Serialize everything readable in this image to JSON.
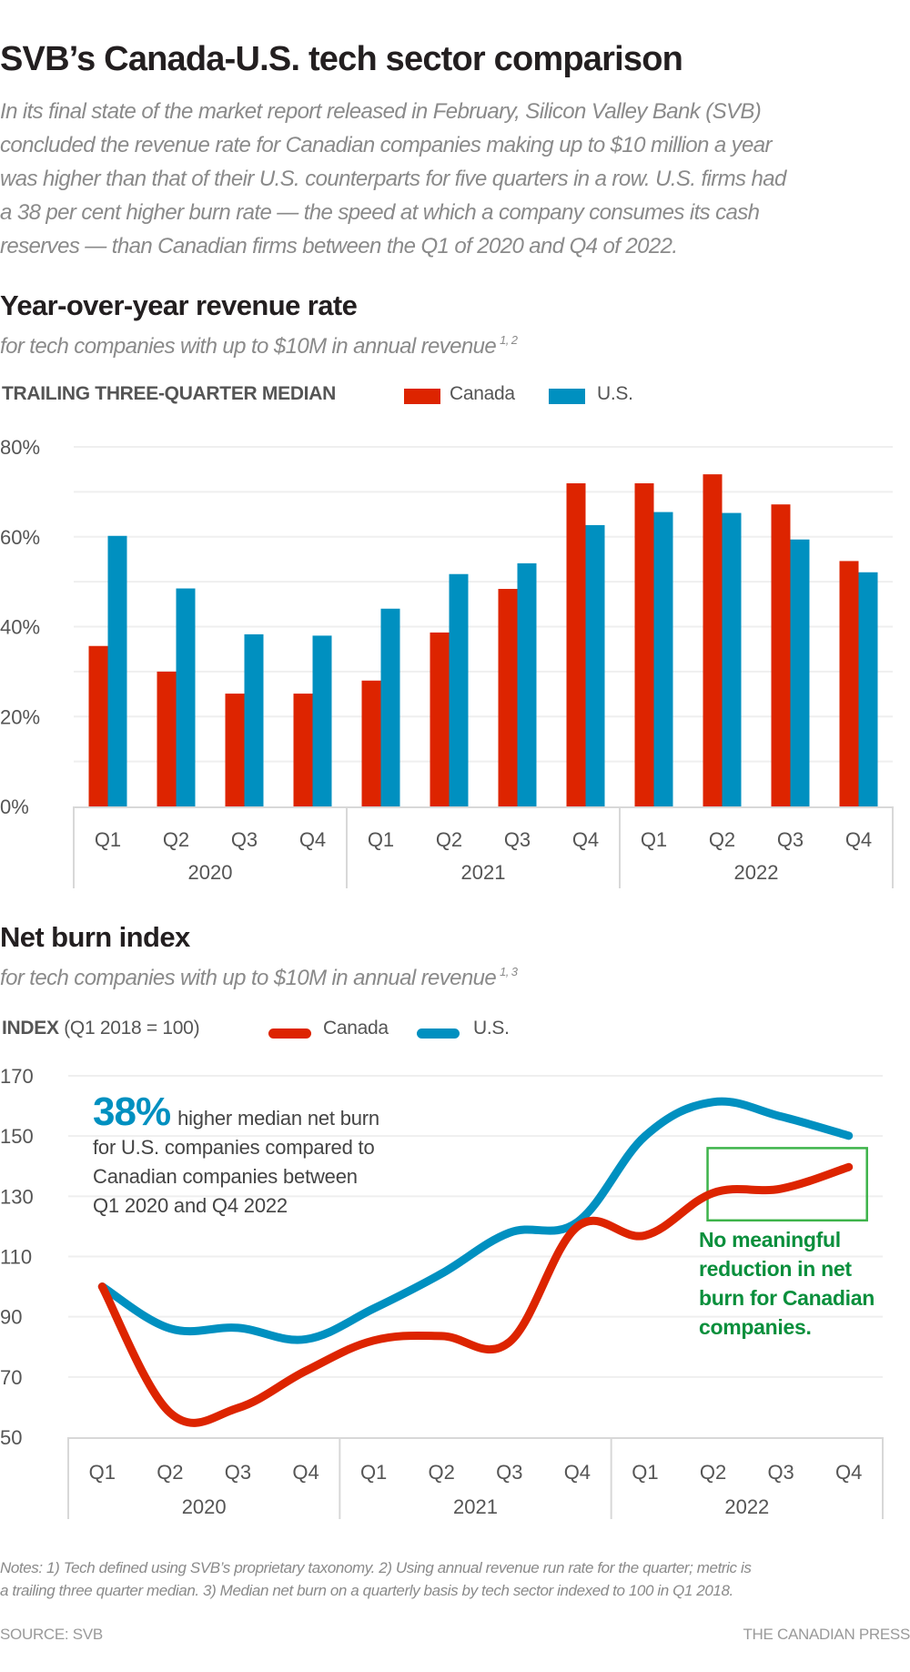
{
  "header": {
    "title": "SVB’s Canada-U.S. tech sector comparison",
    "intro_lines": [
      "In its final state of the market report released in February, Silicon Valley Bank (SVB)",
      "concluded the revenue rate for Canadian companies making up to $10 million a year",
      "was higher than that of their U.S. counterparts for five quarters in a row. U.S. firms had",
      "a 38 per cent higher burn rate — the speed at which a company consumes its cash",
      "reserves — than Canadian firms between the Q1 of 2020 and Q4 of 2022."
    ]
  },
  "colors": {
    "canada": "#dd2400",
    "us": "#0090c0",
    "annotation_green": "#3db34a",
    "annotation_text_green": "#0a8f3c"
  },
  "revenue_section": {
    "title": "Year-over-year revenue rate",
    "subtitle": "for tech companies with up to $10M in annual revenue",
    "subtitle_notes": "1, 2",
    "legend_caption": "TRAILING THREE-QUARTER MEDIAN",
    "legend_canada": "Canada",
    "legend_us": "U.S."
  },
  "burn_section": {
    "title": "Net burn index",
    "subtitle": "for tech companies with up to $10M in annual revenue",
    "subtitle_notes": "1, 3",
    "legend_caption_bold": "INDEX",
    "legend_caption_rest": "(Q1 2018 = 100)",
    "legend_canada": "Canada",
    "legend_us": "U.S.",
    "annotation_big": "38%",
    "annotation_rest_first": "higher median net burn",
    "annotation_lines": [
      "for U.S. companies compared to",
      "Canadian companies between",
      "Q1 2020 and Q4 2022"
    ],
    "annotation_green_lines": [
      "No meaningful",
      "reduction in net",
      "burn for Canadian",
      "companies."
    ]
  },
  "chart_data": [
    {
      "type": "bar",
      "title": "Year-over-year revenue rate",
      "subtitle": "for tech companies with up to $10M in annual revenue 1, 2",
      "ylabel": "TRAILING THREE-QUARTER MEDIAN",
      "xlabel": "",
      "categories": [
        "Q1",
        "Q2",
        "Q3",
        "Q4",
        "Q1",
        "Q2",
        "Q3",
        "Q4",
        "Q1",
        "Q2",
        "Q3",
        "Q4"
      ],
      "groups": [
        "2020",
        "2021",
        "2022"
      ],
      "yticks": [
        0,
        20,
        40,
        60,
        80
      ],
      "ytick_labels": [
        "0%",
        "20%",
        "40%",
        "60%",
        "80%"
      ],
      "ylim": [
        0,
        80
      ],
      "grid": true,
      "legend": "top-left",
      "series": [
        {
          "name": "Canada",
          "values": [
            35.7,
            30.0,
            25.1,
            25.1,
            28.0,
            38.7,
            48.4,
            71.9,
            71.9,
            73.9,
            67.2,
            54.6
          ]
        },
        {
          "name": "U.S.",
          "values": [
            60.2,
            48.5,
            38.3,
            38.0,
            44.0,
            51.7,
            54.1,
            62.6,
            65.5,
            65.3,
            59.4,
            52.1
          ]
        }
      ]
    },
    {
      "type": "line",
      "title": "Net burn index",
      "subtitle": "for tech companies with up to $10M in annual revenue 1, 3",
      "ylabel": "INDEX (Q1 2018 = 100)",
      "xlabel": "",
      "categories": [
        "Q1",
        "Q2",
        "Q3",
        "Q4",
        "Q1",
        "Q2",
        "Q3",
        "Q4",
        "Q1",
        "Q2",
        "Q3",
        "Q4"
      ],
      "groups": [
        "2020",
        "2021",
        "2022"
      ],
      "yticks": [
        50,
        70,
        90,
        110,
        130,
        150,
        170
      ],
      "ytick_labels": [
        "50",
        "70",
        "90",
        "110",
        "130",
        "150",
        "170"
      ],
      "ylim": [
        50,
        170
      ],
      "grid": true,
      "legend": "top-left",
      "series": [
        {
          "name": "Canada",
          "values": [
            100,
            58.1,
            59.7,
            72.0,
            82.1,
            83.6,
            81.6,
            119.9,
            117.0,
            131.1,
            132.5,
            139.7
          ]
        },
        {
          "name": "U.S.",
          "values": [
            100,
            86.1,
            86.3,
            82.5,
            92.7,
            104.3,
            117.9,
            121.4,
            150.0,
            161.3,
            156.5,
            150.1
          ]
        }
      ],
      "highlight_box": {
        "from_category_index": 9,
        "to_category_index": 11,
        "y_range": [
          122,
          146
        ]
      }
    }
  ],
  "footer": {
    "notes_lines": [
      "Notes: 1) Tech defined using SVB’s proprietary taxonomy. 2) Using annual revenue run rate for the quarter; metric is",
      "a trailing three quarter median. 3) Median net burn on a quarterly basis by tech sector indexed to 100 in Q1 2018."
    ],
    "source": "SOURCE: SVB",
    "credit": "THE CANADIAN PRESS"
  }
}
